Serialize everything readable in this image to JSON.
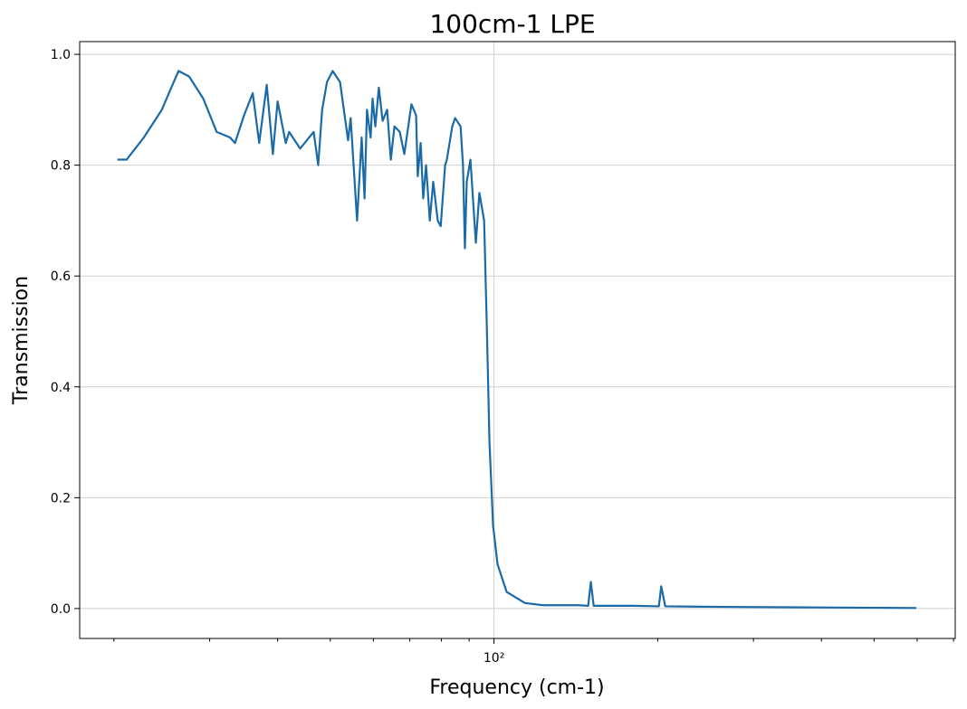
{
  "chart_data": {
    "type": "line",
    "title": "100cm-1 LPE",
    "xlabel": "Frequency (cm-1)",
    "ylabel": "Transmission",
    "xscale": "log",
    "grid": true,
    "xlim": [
      17.3,
      705
    ],
    "ylim": [
      -0.054,
      1.023
    ],
    "xticks": [
      {
        "value": 100,
        "label": "10²"
      }
    ],
    "xminorticks": [
      20,
      30,
      40,
      50,
      60,
      70,
      80,
      90,
      200,
      300,
      400,
      500,
      600,
      700
    ],
    "yticks": [
      {
        "value": 0,
        "label": "0.0"
      },
      0.2,
      0.4,
      0.6,
      0.8,
      {
        "value": 1,
        "label": "1.0"
      }
    ],
    "series": [
      {
        "name": "100cm-1 LPE",
        "color": "#1a6aa8",
        "x": [
          20.3,
          21.1,
          22.7,
          24.5,
          25.5,
          26.3,
          27.5,
          29.2,
          30.9,
          32.7,
          33.4,
          34.7,
          36.0,
          37.0,
          38.2,
          39.2,
          40.0,
          41.4,
          42.0,
          44.0,
          45.7,
          46.6,
          47.5,
          48.3,
          49.3,
          50.5,
          52.1,
          53.9,
          54.5,
          56.0,
          57.1,
          57.8,
          58.4,
          59.3,
          59.8,
          60.5,
          61.4,
          62.4,
          63.6,
          64.6,
          65.6,
          67.1,
          68.4,
          70.5,
          71.9,
          72.4,
          73.3,
          74.1,
          75.0,
          76.2,
          77.3,
          78.8,
          79.8,
          81.3,
          81.9,
          83.8,
          84.8,
          86.8,
          87.7,
          88.4,
          89.1,
          90.5,
          92.6,
          94.0,
          95.9,
          97.0,
          98.1,
          99.6,
          101.5,
          105.5,
          114,
          123,
          143,
          149,
          150.7,
          152.5,
          180.6,
          201,
          203,
          206.5,
          265,
          389,
          598
        ],
        "values": [
          0.81,
          0.81,
          0.85,
          0.9,
          0.94,
          0.97,
          0.96,
          0.92,
          0.86,
          0.85,
          0.84,
          0.89,
          0.93,
          0.84,
          0.945,
          0.82,
          0.915,
          0.84,
          0.86,
          0.83,
          0.85,
          0.86,
          0.8,
          0.9,
          0.95,
          0.97,
          0.95,
          0.845,
          0.885,
          0.7,
          0.85,
          0.74,
          0.9,
          0.85,
          0.92,
          0.87,
          0.94,
          0.88,
          0.9,
          0.81,
          0.87,
          0.86,
          0.82,
          0.91,
          0.89,
          0.78,
          0.84,
          0.74,
          0.8,
          0.7,
          0.77,
          0.7,
          0.69,
          0.8,
          0.81,
          0.87,
          0.885,
          0.87,
          0.8,
          0.65,
          0.77,
          0.81,
          0.66,
          0.75,
          0.7,
          0.51,
          0.3,
          0.15,
          0.08,
          0.03,
          0.01,
          0.006,
          0.006,
          0.005,
          0.048,
          0.005,
          0.005,
          0.004,
          0.04,
          0.004,
          0.003,
          0.002,
          0.001
        ]
      }
    ]
  }
}
